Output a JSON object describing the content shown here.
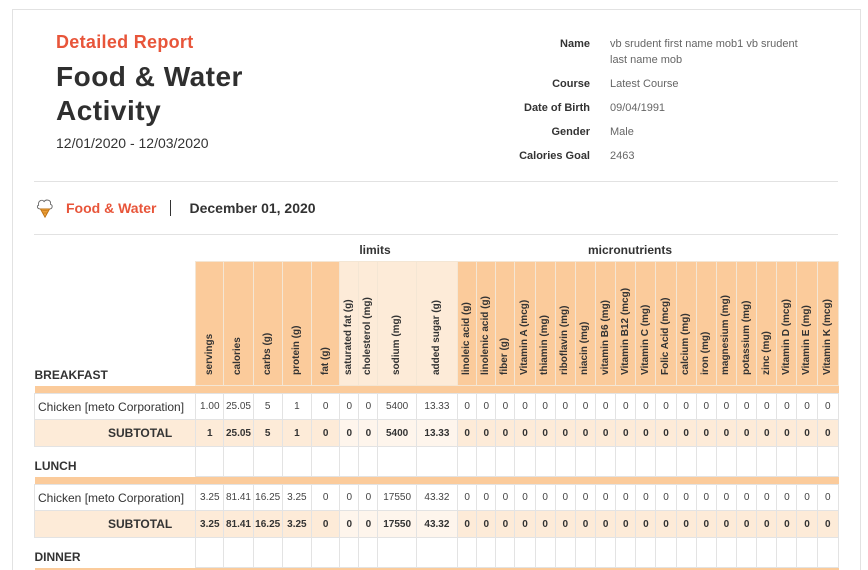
{
  "header": {
    "report_label": "Detailed Report",
    "title": "Food & Water Activity",
    "date_range": "12/01/2020 - 12/03/2020"
  },
  "profile": [
    {
      "label": "Name",
      "value": "vb srudent first name mob1 vb srudent last name mob"
    },
    {
      "label": "Course",
      "value": "Latest Course"
    },
    {
      "label": "Date of Birth",
      "value": "09/04/1991"
    },
    {
      "label": "Gender",
      "value": "Male"
    },
    {
      "label": "Calories Goal",
      "value": "2463"
    }
  ],
  "section": {
    "icon": "food-icon",
    "name": "Food & Water",
    "date": "December 01, 2020"
  },
  "groups": {
    "limits": "limits",
    "micronutrients": "micronutrients"
  },
  "columns": [
    "servings",
    "calories",
    "carbs (g)",
    "protein (g)",
    "fat (g)",
    "saturated fat (g)",
    "cholesterol (mg)",
    "sodium (mg)",
    "added sugar (g)",
    "linoleic acid (g)",
    "linolenic acid (g)",
    "fiber (g)",
    "Vitamin A (mcg)",
    "thiamin (mg)",
    "riboflavin (mg)",
    "niacin (mg)",
    "vitamin B6 (mg)",
    "Vitamin B12 (mcg)",
    "Vitamin C (mg)",
    "Folic Acid (mcg)",
    "calcium (mg)",
    "iron (mg)",
    "magnesium (mg)",
    "potassium (mg)",
    "zinc (mg)",
    "Vitamin D (mcg)",
    "Vitamin E (mg)",
    "Vitamin K (mcg)"
  ],
  "meals": [
    {
      "name": "BREAKFAST",
      "items": [
        {
          "name": "Chicken [meto Corporation]",
          "values": [
            "1.00",
            "25.05",
            "5",
            "1",
            "0",
            "0",
            "0",
            "5400",
            "13.33",
            "0",
            "0",
            "0",
            "0",
            "0",
            "0",
            "0",
            "0",
            "0",
            "0",
            "0",
            "0",
            "0",
            "0",
            "0",
            "0",
            "0",
            "0",
            "0"
          ]
        }
      ],
      "subtotal": {
        "label": "SUBTOTAL",
        "values": [
          "1",
          "25.05",
          "5",
          "1",
          "0",
          "0",
          "0",
          "5400",
          "13.33",
          "0",
          "0",
          "0",
          "0",
          "0",
          "0",
          "0",
          "0",
          "0",
          "0",
          "0",
          "0",
          "0",
          "0",
          "0",
          "0",
          "0",
          "0",
          "0"
        ]
      }
    },
    {
      "name": "LUNCH",
      "items": [
        {
          "name": "Chicken [meto Corporation]",
          "values": [
            "3.25",
            "81.41",
            "16.25",
            "3.25",
            "0",
            "0",
            "0",
            "17550",
            "43.32",
            "0",
            "0",
            "0",
            "0",
            "0",
            "0",
            "0",
            "0",
            "0",
            "0",
            "0",
            "0",
            "0",
            "0",
            "0",
            "0",
            "0",
            "0",
            "0"
          ]
        }
      ],
      "subtotal": {
        "label": "SUBTOTAL",
        "values": [
          "3.25",
          "81.41",
          "16.25",
          "3.25",
          "0",
          "0",
          "0",
          "17550",
          "43.32",
          "0",
          "0",
          "0",
          "0",
          "0",
          "0",
          "0",
          "0",
          "0",
          "0",
          "0",
          "0",
          "0",
          "0",
          "0",
          "0",
          "0",
          "0",
          "0"
        ]
      }
    },
    {
      "name": "DINNER",
      "items": [],
      "subtotal": null
    }
  ]
}
